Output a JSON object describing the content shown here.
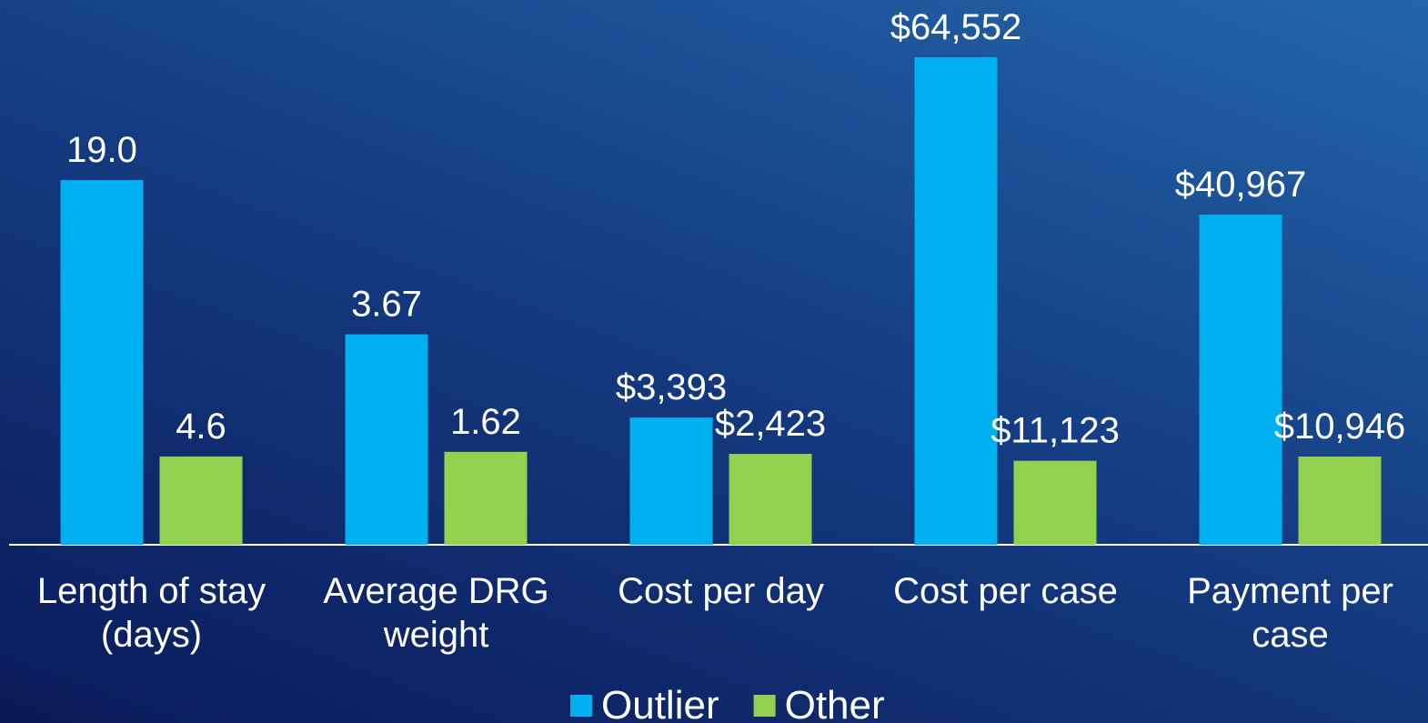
{
  "chart_data": {
    "type": "bar",
    "categories": [
      "Length of stay (days)",
      "Average DRG weight",
      "Cost per day",
      "Cost per case",
      "Payment per case"
    ],
    "ylims": [
      [
        0,
        25.4
      ],
      [
        0,
        8.5
      ],
      [
        0,
        13000
      ],
      [
        0,
        64552
      ],
      [
        0,
        60500
      ]
    ],
    "series": [
      {
        "name": "Outlier",
        "color": "#00b0f0",
        "values": [
          19,
          3.67,
          3393,
          64552,
          40967
        ],
        "value_labels": [
          "19.0",
          "3.67",
          "$3,393",
          "$64,552",
          "$40,967"
        ]
      },
      {
        "name": "Other",
        "color": "#92d050",
        "values": [
          4.6,
          1.62,
          2423,
          11123,
          10946
        ],
        "value_labels": [
          "4.6",
          "1.62",
          "$2,423",
          "$11,123",
          "$10,946"
        ]
      }
    ]
  }
}
